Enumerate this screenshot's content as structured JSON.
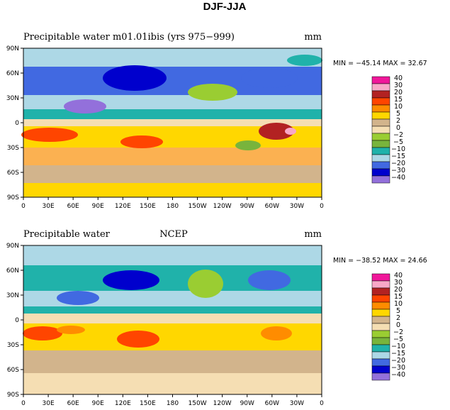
{
  "figure_title": "DJF-JJA",
  "levels": [
    "40",
    "30",
    "20",
    "15",
    "10",
    "5",
    "2",
    "0",
    "−2",
    "−5",
    "−10",
    "−15",
    "−20",
    "−30",
    "−40"
  ],
  "colors": [
    "#f0179a",
    "#f8a8c8",
    "#b22222",
    "#ff4500",
    "#ff8c00",
    "#ffd700",
    "#d2b48c",
    "#f5deb3",
    "#9acd32",
    "#78b43c",
    "#20b2aa",
    "#add8e6",
    "#4169e1",
    "#0000cd",
    "#9370db"
  ],
  "x_ticks": [
    "0",
    "30E",
    "60E",
    "90E",
    "120E",
    "150E",
    "180",
    "150W",
    "120W",
    "90W",
    "60W",
    "30W",
    "0"
  ],
  "y_ticks": [
    "90N",
    "60N",
    "30N",
    "0",
    "30S",
    "60S",
    "90S"
  ],
  "panels": [
    {
      "left_title": "Precipitable water",
      "center_title": "m01.01ibis (yrs 975−999)",
      "units": "mm",
      "stats": "MIN = −45.14  MAX =   32.67"
    },
    {
      "left_title": "Precipitable water",
      "center_title": "NCEP",
      "units": "mm",
      "stats": "MIN = −38.52  MAX =   24.66"
    }
  ]
}
